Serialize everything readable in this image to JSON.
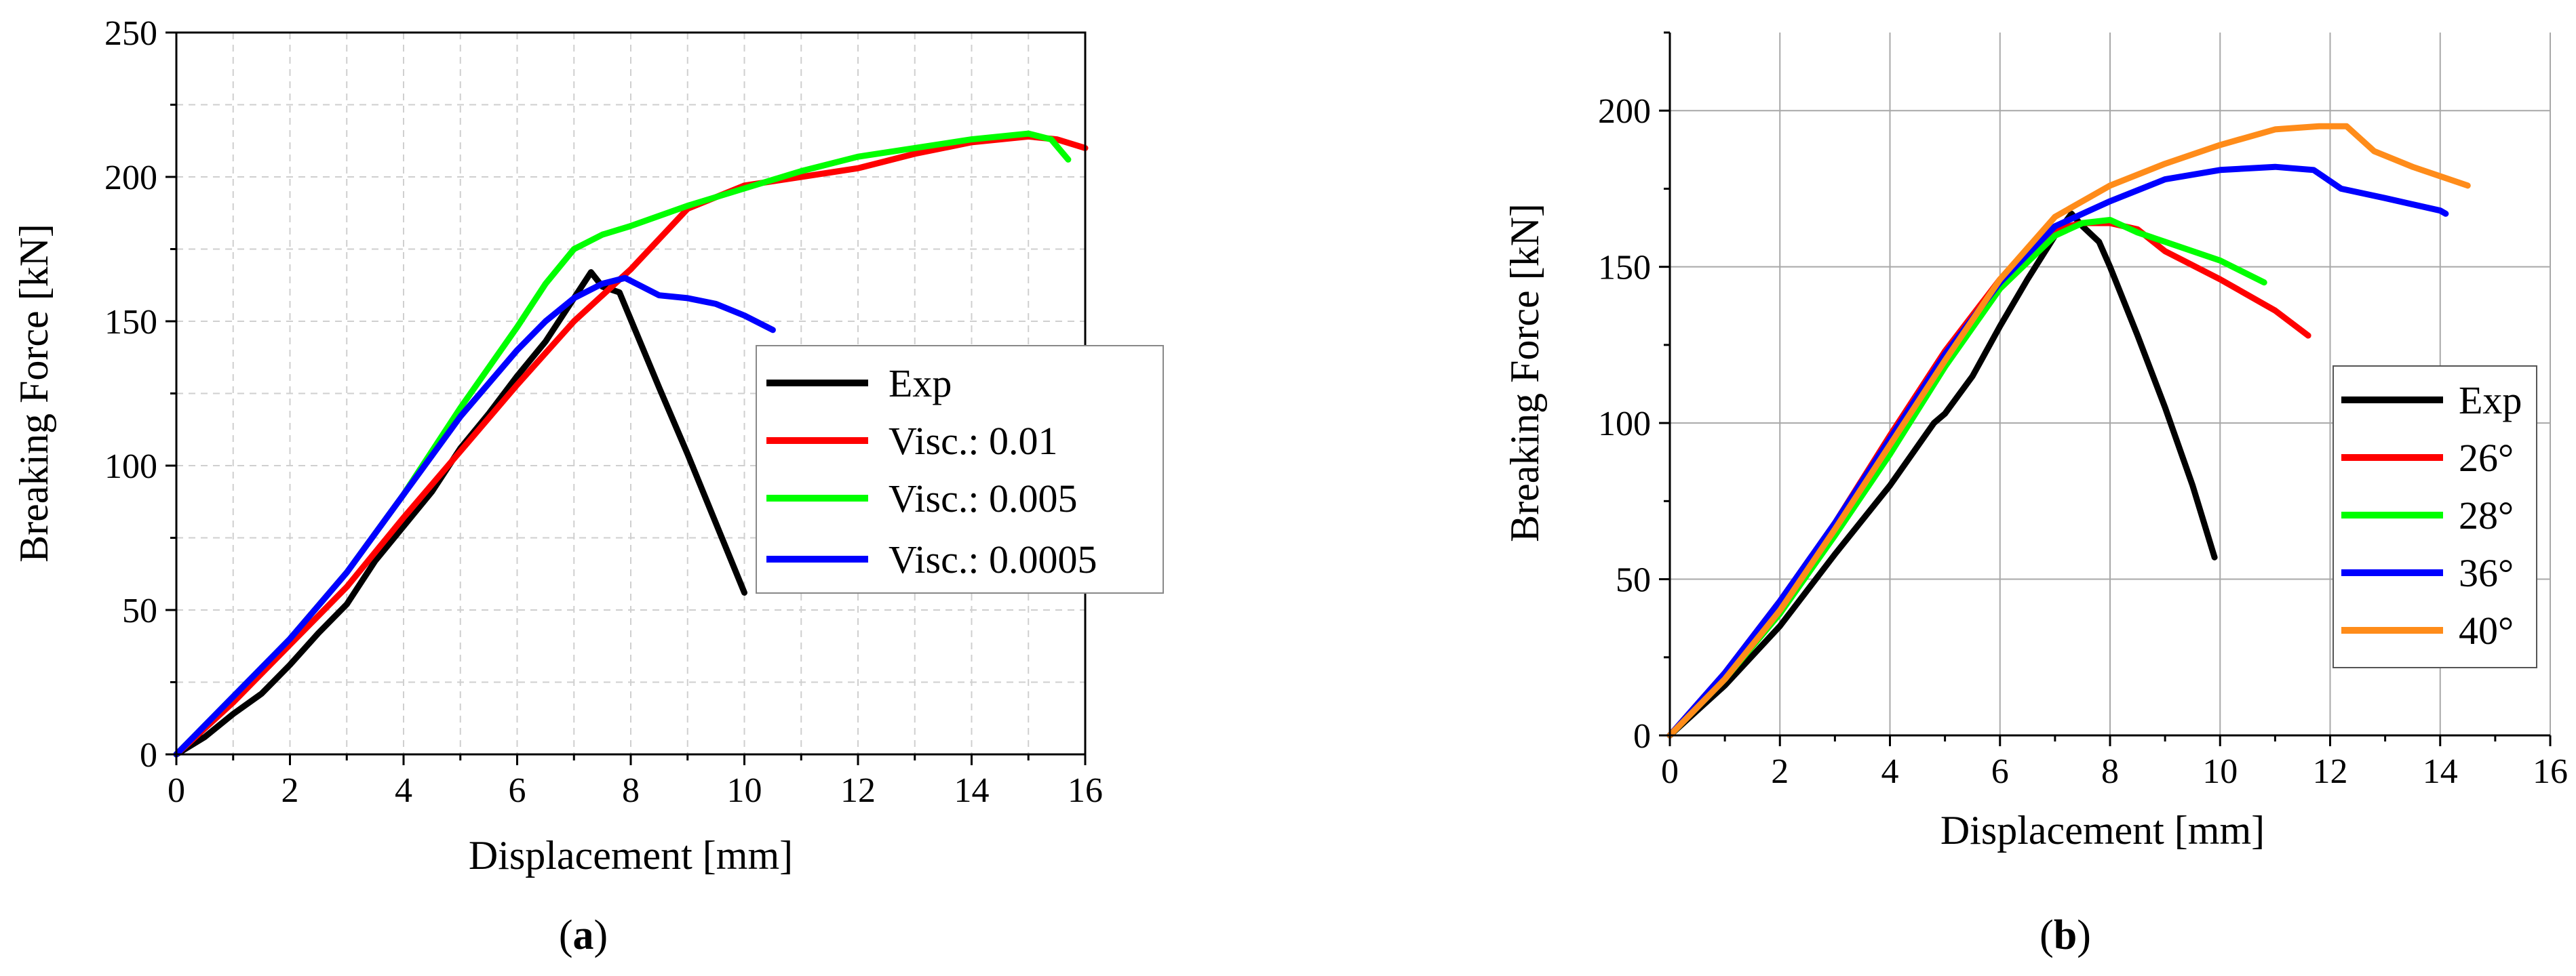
{
  "chart_data": [
    {
      "panel": "a",
      "type": "line",
      "caption": {
        "open": "(",
        "letter": "a",
        "close": ")"
      },
      "xlabel": "Displacement [mm]",
      "ylabel": "Breaking Force [kN]",
      "xlim": [
        0,
        16
      ],
      "ylim": [
        0,
        250
      ],
      "xticks": [
        0,
        2,
        4,
        6,
        8,
        10,
        12,
        14,
        16
      ],
      "yticks": [
        0,
        50,
        100,
        150,
        200,
        250
      ],
      "grid": "major and minor, dashed",
      "legend_position": "center-right",
      "series": [
        {
          "name": "Exp",
          "color": "#000000",
          "points": [
            [
              0,
              0
            ],
            [
              0.5,
              6
            ],
            [
              1,
              14
            ],
            [
              1.5,
              21
            ],
            [
              2,
              31
            ],
            [
              2.5,
              42
            ],
            [
              3,
              52
            ],
            [
              3.5,
              67
            ],
            [
              4,
              79
            ],
            [
              4.5,
              91
            ],
            [
              5,
              106
            ],
            [
              5.5,
              118
            ],
            [
              6,
              131
            ],
            [
              6.5,
              143
            ],
            [
              7,
              158
            ],
            [
              7.3,
              167
            ],
            [
              7.5,
              162
            ],
            [
              7.8,
              160
            ],
            [
              8.5,
              127
            ],
            [
              9,
              104
            ],
            [
              9.5,
              80
            ],
            [
              10,
              56
            ]
          ]
        },
        {
          "name": "Visc.: 0.01",
          "color": "#ff0000",
          "points": [
            [
              0,
              0
            ],
            [
              1,
              18
            ],
            [
              2,
              38
            ],
            [
              3,
              58
            ],
            [
              4,
              82
            ],
            [
              5,
              105
            ],
            [
              6,
              128
            ],
            [
              7,
              150
            ],
            [
              8,
              168
            ],
            [
              9,
              189
            ],
            [
              10,
              197
            ],
            [
              11,
              200
            ],
            [
              12,
              203
            ],
            [
              13,
              208
            ],
            [
              14,
              212
            ],
            [
              15,
              214
            ],
            [
              15.5,
              213
            ],
            [
              16,
              210
            ]
          ]
        },
        {
          "name": "Visc.: 0.005",
          "color": "#00ff00",
          "points": [
            [
              0,
              0
            ],
            [
              1,
              20
            ],
            [
              2,
              40
            ],
            [
              3,
              63
            ],
            [
              4,
              90
            ],
            [
              5,
              120
            ],
            [
              6,
              148
            ],
            [
              6.5,
              163
            ],
            [
              7,
              175
            ],
            [
              7.5,
              180
            ],
            [
              8,
              183
            ],
            [
              9,
              190
            ],
            [
              10,
              196
            ],
            [
              11,
              202
            ],
            [
              12,
              207
            ],
            [
              13,
              210
            ],
            [
              14,
              213
            ],
            [
              15,
              215
            ],
            [
              15.4,
              213
            ],
            [
              15.7,
              206
            ]
          ]
        },
        {
          "name": "Visc.: 0.0005",
          "color": "#0000ff",
          "points": [
            [
              0,
              0
            ],
            [
              1,
              20
            ],
            [
              2,
              40
            ],
            [
              3,
              63
            ],
            [
              4,
              90
            ],
            [
              5,
              117
            ],
            [
              6,
              140
            ],
            [
              6.5,
              150
            ],
            [
              7,
              158
            ],
            [
              7.5,
              163
            ],
            [
              7.9,
              165
            ],
            [
              8.2,
              162
            ],
            [
              8.5,
              159
            ],
            [
              9,
              158
            ],
            [
              9.5,
              156
            ],
            [
              10,
              152
            ],
            [
              10.5,
              147
            ]
          ]
        }
      ]
    },
    {
      "panel": "b",
      "type": "line",
      "caption": {
        "open": "(",
        "letter": "b",
        "close": ")"
      },
      "xlabel": "Displacement [mm]",
      "ylabel": "Breaking Force [kN]",
      "xlim": [
        0,
        16
      ],
      "ylim": [
        0,
        225
      ],
      "xticks": [
        0,
        2,
        4,
        6,
        8,
        10,
        12,
        14,
        16
      ],
      "yticks": [
        0,
        50,
        100,
        150,
        200
      ],
      "grid": "major, solid",
      "legend_position": "bottom-right",
      "series": [
        {
          "name": "Exp",
          "color": "#000000",
          "points": [
            [
              0,
              0
            ],
            [
              0.5,
              8
            ],
            [
              1,
              16
            ],
            [
              2,
              35
            ],
            [
              3,
              58
            ],
            [
              4,
              80
            ],
            [
              4.8,
              100
            ],
            [
              5,
              103
            ],
            [
              5.5,
              115
            ],
            [
              6,
              131
            ],
            [
              6.5,
              146
            ],
            [
              7,
              160
            ],
            [
              7.3,
              167
            ],
            [
              7.5,
              163
            ],
            [
              7.8,
              158
            ],
            [
              8,
              150
            ],
            [
              8.5,
              128
            ],
            [
              9,
              105
            ],
            [
              9.5,
              80
            ],
            [
              9.9,
              57
            ]
          ]
        },
        {
          "name": "26°",
          "color": "#ff0000",
          "points": [
            [
              0,
              0
            ],
            [
              1,
              20
            ],
            [
              2,
              43
            ],
            [
              3,
              68
            ],
            [
              4,
              96
            ],
            [
              5,
              123
            ],
            [
              6,
              146
            ],
            [
              7,
              162
            ],
            [
              7.5,
              164
            ],
            [
              8,
              164
            ],
            [
              8.5,
              162
            ],
            [
              9,
              155
            ],
            [
              10,
              146
            ],
            [
              11,
              136
            ],
            [
              11.6,
              128
            ]
          ]
        },
        {
          "name": "28°",
          "color": "#00ff00",
          "points": [
            [
              0,
              0
            ],
            [
              1,
              18
            ],
            [
              2,
              39
            ],
            [
              3,
              64
            ],
            [
              4,
              90
            ],
            [
              5,
              118
            ],
            [
              6,
              143
            ],
            [
              7,
              160
            ],
            [
              7.5,
              164
            ],
            [
              8,
              165
            ],
            [
              8.5,
              161
            ],
            [
              9,
              158
            ],
            [
              10,
              152
            ],
            [
              10.8,
              145
            ]
          ]
        },
        {
          "name": "36°",
          "color": "#0000ff",
          "points": [
            [
              0,
              0
            ],
            [
              1,
              20
            ],
            [
              2,
              43
            ],
            [
              3,
              68
            ],
            [
              4,
              95
            ],
            [
              5,
              122
            ],
            [
              6,
              145
            ],
            [
              7,
              163
            ],
            [
              8,
              171
            ],
            [
              9,
              178
            ],
            [
              10,
              181
            ],
            [
              11,
              182
            ],
            [
              11.7,
              181
            ],
            [
              12.2,
              175
            ],
            [
              13,
              172
            ],
            [
              14,
              168
            ],
            [
              14.1,
              167
            ]
          ]
        },
        {
          "name": "40°",
          "color": "#ff8c1a",
          "points": [
            [
              0,
              0
            ],
            [
              1,
              18
            ],
            [
              2,
              40
            ],
            [
              3,
              66
            ],
            [
              4,
              93
            ],
            [
              5,
              120
            ],
            [
              6,
              146
            ],
            [
              7,
              166
            ],
            [
              8,
              176
            ],
            [
              9,
              183
            ],
            [
              10,
              189
            ],
            [
              11,
              194
            ],
            [
              11.8,
              195
            ],
            [
              12.3,
              195
            ],
            [
              12.8,
              187
            ],
            [
              13.5,
              182
            ],
            [
              14.5,
              176
            ]
          ]
        }
      ]
    }
  ]
}
